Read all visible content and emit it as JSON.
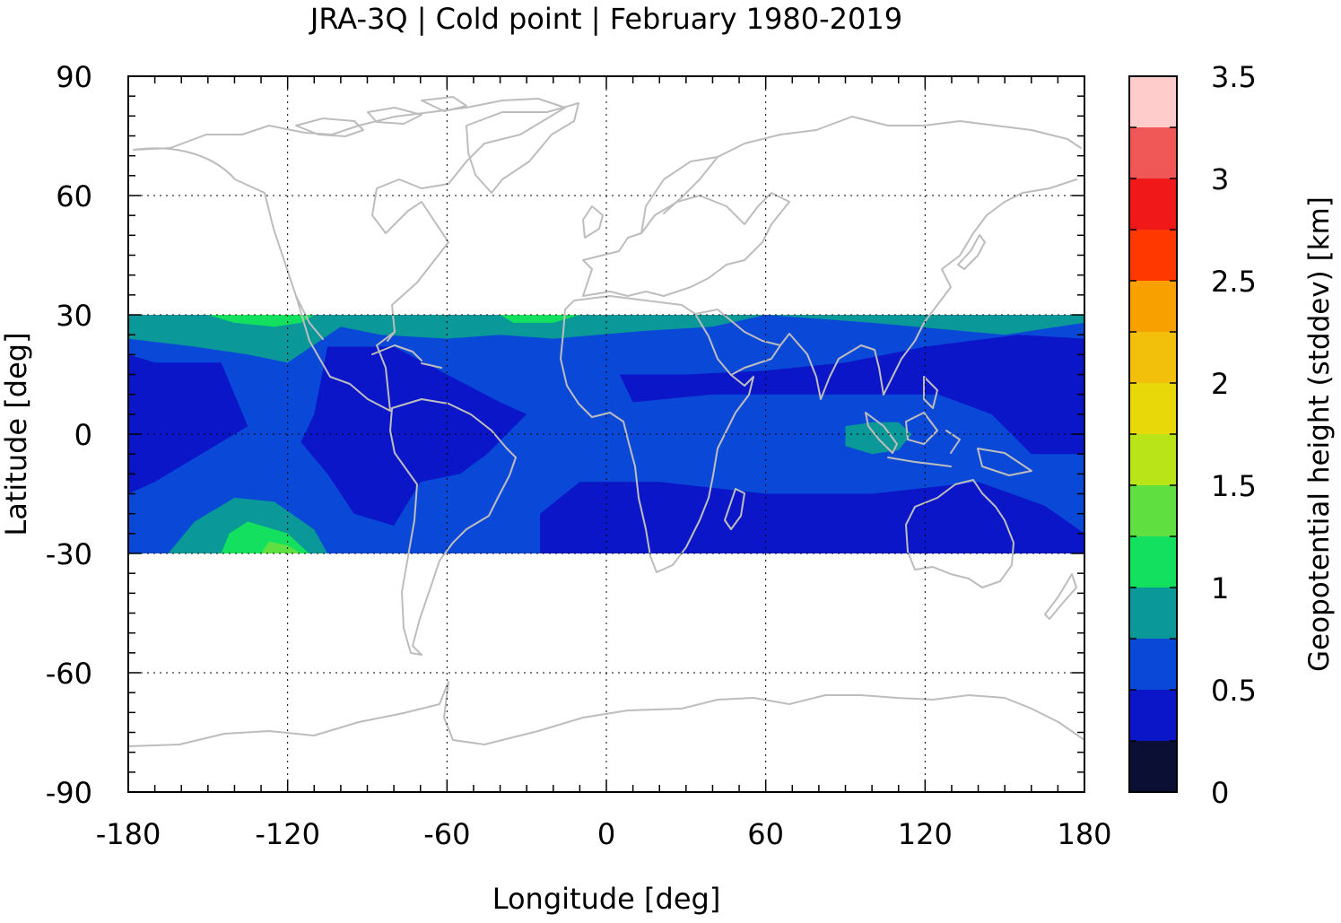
{
  "chart_data": {
    "type": "heatmap",
    "title": "JRA-3Q | Cold point | February 1980-2019",
    "xlabel": "Longitude [deg]",
    "ylabel": "Latitude [deg]",
    "colorbar_label": "Geopotential height (stddev) [km]",
    "xlim": [
      -180,
      180
    ],
    "ylim": [
      -90,
      90
    ],
    "data_lat_range": [
      -30,
      30
    ],
    "x_ticks": [
      -180,
      -120,
      -60,
      0,
      60,
      120,
      180
    ],
    "y_ticks": [
      90,
      60,
      30,
      0,
      -30,
      -60,
      -90
    ],
    "x_tick_labels": [
      "-180",
      "-120",
      "-60",
      "0",
      "60",
      "120",
      "180"
    ],
    "y_tick_labels": [
      "90",
      "60",
      "30",
      "0",
      "-30",
      "-60",
      "-90"
    ],
    "colorbar_range": [
      0,
      3.5
    ],
    "colorbar_ticks": [
      0,
      0.5,
      1,
      1.5,
      2,
      2.5,
      3,
      3.5
    ],
    "colorbar_tick_labels": [
      "0",
      "0.5",
      "1",
      "1.5",
      "2",
      "2.5",
      "3",
      "3.5"
    ],
    "colorbar_levels": [
      {
        "from": 0.0,
        "to": 0.25,
        "color": "#0b0f33"
      },
      {
        "from": 0.25,
        "to": 0.5,
        "color": "#0a16c8"
      },
      {
        "from": 0.5,
        "to": 0.75,
        "color": "#0a48d8"
      },
      {
        "from": 0.75,
        "to": 1.0,
        "color": "#0a9898"
      },
      {
        "from": 1.0,
        "to": 1.25,
        "color": "#14e060"
      },
      {
        "from": 1.25,
        "to": 1.5,
        "color": "#60e040"
      },
      {
        "from": 1.5,
        "to": 1.75,
        "color": "#b8e418"
      },
      {
        "from": 1.75,
        "to": 2.0,
        "color": "#e8d80a"
      },
      {
        "from": 2.0,
        "to": 2.25,
        "color": "#f2c00a"
      },
      {
        "from": 2.25,
        "to": 2.5,
        "color": "#f8a000"
      },
      {
        "from": 2.5,
        "to": 2.75,
        "color": "#ff3800"
      },
      {
        "from": 2.75,
        "to": 3.0,
        "color": "#f01818"
      },
      {
        "from": 3.0,
        "to": 3.25,
        "color": "#f05858"
      },
      {
        "from": 3.25,
        "to": 3.5,
        "color": "#ffcccc"
      }
    ],
    "regions": [
      {
        "name": "background",
        "value": 0.6,
        "points": [
          [
            -180,
            30
          ],
          [
            180,
            30
          ],
          [
            180,
            -30
          ],
          [
            -180,
            -30
          ]
        ]
      },
      {
        "name": "n-band-ocean",
        "value": 0.9,
        "points": [
          [
            -180,
            30
          ],
          [
            180,
            30
          ],
          [
            180,
            28
          ],
          [
            150,
            25
          ],
          [
            100,
            28
          ],
          [
            60,
            30
          ],
          [
            40,
            27
          ],
          [
            15,
            26
          ],
          [
            -20,
            24
          ],
          [
            -40,
            25
          ],
          [
            -60,
            24
          ],
          [
            -85,
            25
          ],
          [
            -100,
            27
          ],
          [
            -120,
            18
          ],
          [
            -135,
            20
          ],
          [
            -155,
            22
          ],
          [
            -180,
            24
          ]
        ]
      },
      {
        "name": "n-pacific-green",
        "value": 1.1,
        "points": [
          [
            -150,
            30
          ],
          [
            -110,
            30
          ],
          [
            -115,
            28
          ],
          [
            -125,
            27
          ],
          [
            -140,
            28
          ]
        ]
      },
      {
        "name": "n-atlantic-green",
        "value": 1.1,
        "points": [
          [
            -40,
            30
          ],
          [
            -10,
            30
          ],
          [
            -20,
            28
          ],
          [
            -35,
            28
          ]
        ]
      },
      {
        "name": "low-tropics-americas-pacific",
        "value": 0.4,
        "points": [
          [
            -180,
            20
          ],
          [
            -170,
            18
          ],
          [
            -145,
            18
          ],
          [
            -140,
            10
          ],
          [
            -135,
            2
          ],
          [
            -145,
            -2
          ],
          [
            -170,
            -12
          ],
          [
            -180,
            -15
          ]
        ]
      },
      {
        "name": "low-atlantic-sa",
        "value": 0.4,
        "points": [
          [
            -105,
            22
          ],
          [
            -80,
            22
          ],
          [
            -60,
            15
          ],
          [
            -40,
            8
          ],
          [
            -30,
            5
          ],
          [
            -45,
            -5
          ],
          [
            -55,
            -10
          ],
          [
            -70,
            -12
          ],
          [
            -80,
            -23
          ],
          [
            -95,
            -20
          ],
          [
            -105,
            -10
          ],
          [
            -115,
            -2
          ],
          [
            -110,
            5
          ]
        ]
      },
      {
        "name": "low-indian-maritime",
        "value": 0.4,
        "points": [
          [
            5,
            15
          ],
          [
            30,
            15
          ],
          [
            60,
            16
          ],
          [
            90,
            18
          ],
          [
            120,
            22
          ],
          [
            155,
            25
          ],
          [
            180,
            24
          ],
          [
            180,
            -5
          ],
          [
            160,
            -5
          ],
          [
            145,
            5
          ],
          [
            125,
            10
          ],
          [
            100,
            10
          ],
          [
            75,
            10
          ],
          [
            40,
            10
          ],
          [
            10,
            8
          ]
        ]
      },
      {
        "name": "low-south-band",
        "value": 0.4,
        "points": [
          [
            -25,
            -20
          ],
          [
            -10,
            -12
          ],
          [
            20,
            -12
          ],
          [
            60,
            -15
          ],
          [
            100,
            -15
          ],
          [
            140,
            -12
          ],
          [
            165,
            -18
          ],
          [
            180,
            -25
          ],
          [
            180,
            -30
          ],
          [
            -25,
            -30
          ]
        ]
      },
      {
        "name": "maritime-teal",
        "value": 0.9,
        "points": [
          [
            90,
            2
          ],
          [
            100,
            3
          ],
          [
            110,
            3
          ],
          [
            115,
            0
          ],
          [
            110,
            -4
          ],
          [
            100,
            -5
          ],
          [
            90,
            -3
          ]
        ]
      },
      {
        "name": "s-pacific-teal",
        "value": 0.9,
        "points": [
          [
            -165,
            -30
          ],
          [
            -105,
            -30
          ],
          [
            -110,
            -24
          ],
          [
            -125,
            -17
          ],
          [
            -140,
            -16
          ],
          [
            -155,
            -22
          ]
        ]
      },
      {
        "name": "s-pacific-green",
        "value": 1.1,
        "points": [
          [
            -145,
            -30
          ],
          [
            -112,
            -30
          ],
          [
            -120,
            -25
          ],
          [
            -135,
            -22
          ],
          [
            -142,
            -25
          ]
        ]
      },
      {
        "name": "s-pacific-lime",
        "value": 1.4,
        "points": [
          [
            -130,
            -30
          ],
          [
            -115,
            -30
          ],
          [
            -120,
            -28
          ],
          [
            -127,
            -27
          ]
        ]
      }
    ],
    "grid": true
  }
}
